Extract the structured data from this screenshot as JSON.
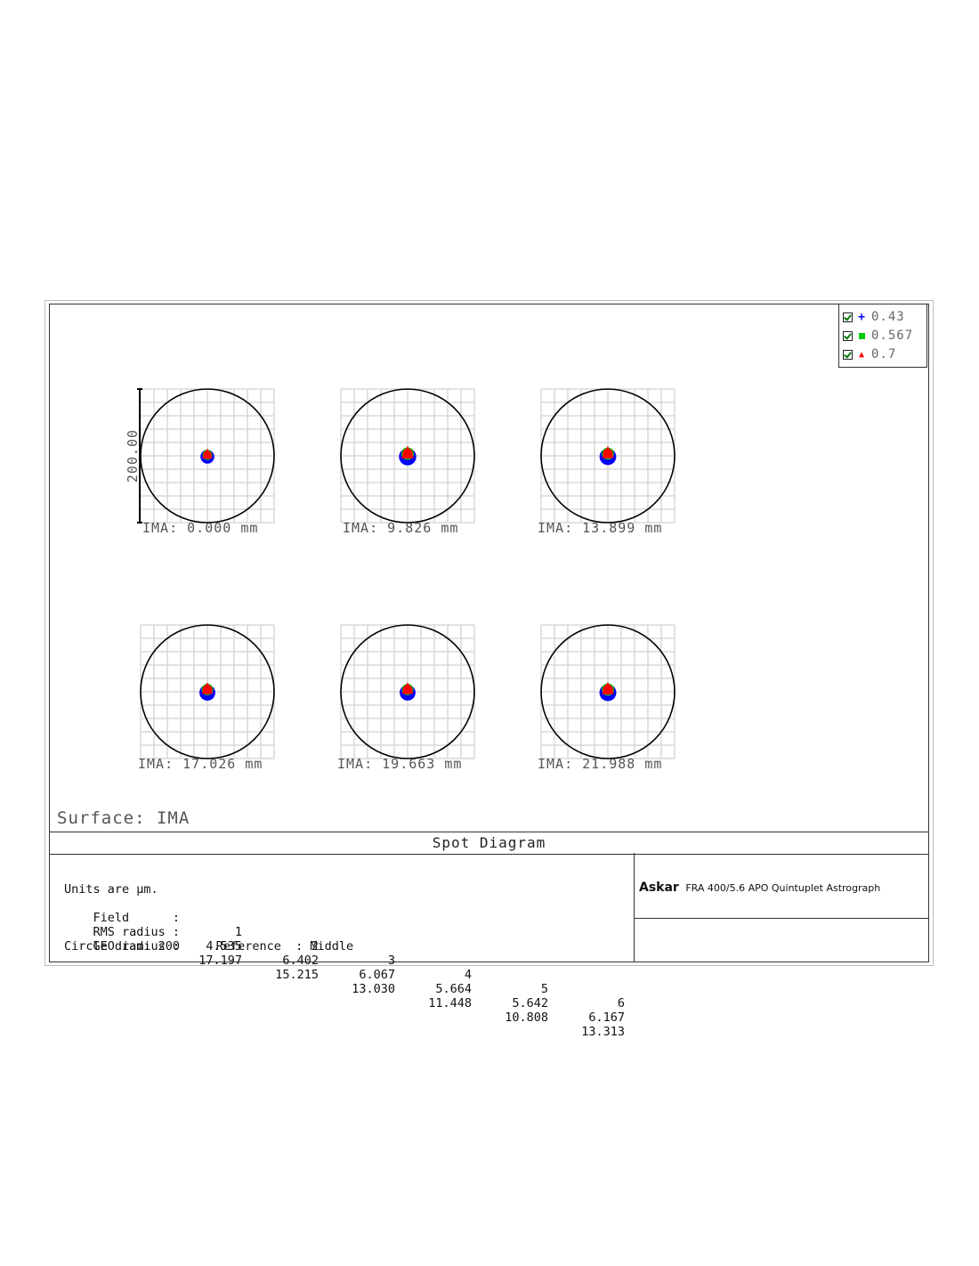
{
  "chart_data": {
    "type": "scatter",
    "title": "Spot Diagram",
    "surface_label": "Surface: IMA",
    "scale_bar_label": "200.00",
    "circle_diameter_um": 200,
    "legend": [
      {
        "label": "0.43",
        "color": "#0000ff",
        "marker": "+",
        "checked": true
      },
      {
        "label": "0.567",
        "color": "#00cc00",
        "marker": "■",
        "checked": true
      },
      {
        "label": "0.7",
        "color": "#ff0000",
        "marker": "▲",
        "checked": true
      }
    ],
    "fields": [
      {
        "label": "IMA: 0.000 mm",
        "rms_radius": 4.535,
        "geo_radius": 17.197,
        "centroid_offset_um": [
          0,
          0
        ]
      },
      {
        "label": "IMA: 9.826 mm",
        "rms_radius": 6.402,
        "geo_radius": 15.215,
        "centroid_offset_um": [
          0,
          2
        ]
      },
      {
        "label": "IMA: 13.899 mm",
        "rms_radius": 6.067,
        "geo_radius": 13.03,
        "centroid_offset_um": [
          0,
          2
        ]
      },
      {
        "label": "IMA: 17.026 mm",
        "rms_radius": 5.664,
        "geo_radius": 11.448,
        "centroid_offset_um": [
          0,
          2
        ]
      },
      {
        "label": "IMA: 19.663 mm",
        "rms_radius": 5.642,
        "geo_radius": 10.808,
        "centroid_offset_um": [
          0,
          2
        ]
      },
      {
        "label": "IMA: 21.988 mm",
        "rms_radius": 6.167,
        "geo_radius": 13.313,
        "centroid_offset_um": [
          0,
          2
        ]
      }
    ]
  },
  "stats": {
    "units_line": "Units are µm.",
    "field_label": "Field      :",
    "field_numbers": [
      "1",
      "2",
      "3",
      "4",
      "5",
      "6"
    ],
    "rms_label": "RMS radius :",
    "rms_values": [
      "4.535",
      "6.402",
      "6.067",
      "5.664",
      "5.642",
      "6.167"
    ],
    "geo_label": "GEO radius :",
    "geo_values": [
      "17.197",
      "15.215",
      "13.030",
      "11.448",
      "10.808",
      "13.313"
    ],
    "circle_line": "Circle diam: 200     Reference  : Middle"
  },
  "brand": {
    "logo": "Askar",
    "text": "FRA 400/5.6 APO Quintuplet Astrograph"
  }
}
